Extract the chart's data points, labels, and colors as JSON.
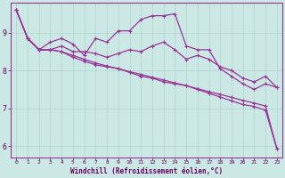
{
  "xlabel": "Windchill (Refroidissement éolien,°C)",
  "background_color": "#cce8e4",
  "grid_color": "#aad4cc",
  "line_color": "#993399",
  "xlim": [
    -0.5,
    23.5
  ],
  "ylim": [
    5.7,
    9.8
  ],
  "x": [
    0,
    1,
    2,
    3,
    4,
    5,
    6,
    7,
    8,
    9,
    10,
    11,
    12,
    13,
    14,
    15,
    16,
    17,
    18,
    19,
    20,
    21,
    22,
    23
  ],
  "line1": [
    9.6,
    8.85,
    8.55,
    8.75,
    8.85,
    8.7,
    8.4,
    8.85,
    8.75,
    9.05,
    9.05,
    9.35,
    9.45,
    9.45,
    9.5,
    8.65,
    8.55,
    8.55,
    8.05,
    7.85,
    7.65,
    7.5,
    7.65,
    7.55
  ],
  "line2": [
    9.6,
    8.85,
    8.55,
    8.55,
    8.65,
    8.5,
    8.5,
    8.45,
    8.35,
    8.45,
    8.55,
    8.5,
    8.65,
    8.75,
    8.55,
    8.3,
    8.4,
    8.3,
    8.1,
    8.0,
    7.8,
    7.7,
    7.85,
    7.55
  ],
  "line3": [
    9.6,
    8.85,
    8.55,
    8.55,
    8.5,
    8.35,
    8.25,
    8.15,
    8.1,
    8.05,
    7.95,
    7.85,
    7.8,
    7.7,
    7.65,
    7.6,
    7.5,
    7.4,
    7.3,
    7.2,
    7.1,
    7.05,
    6.95,
    5.93
  ],
  "line4": [
    9.6,
    8.85,
    8.55,
    8.55,
    8.5,
    8.4,
    8.3,
    8.2,
    8.12,
    8.05,
    7.97,
    7.9,
    7.82,
    7.75,
    7.67,
    7.6,
    7.52,
    7.44,
    7.37,
    7.29,
    7.21,
    7.14,
    7.06,
    5.93
  ],
  "yticks": [
    6,
    7,
    8,
    9
  ],
  "xticks": [
    0,
    1,
    2,
    3,
    4,
    5,
    6,
    7,
    8,
    9,
    10,
    11,
    12,
    13,
    14,
    15,
    16,
    17,
    18,
    19,
    20,
    21,
    22,
    23
  ]
}
